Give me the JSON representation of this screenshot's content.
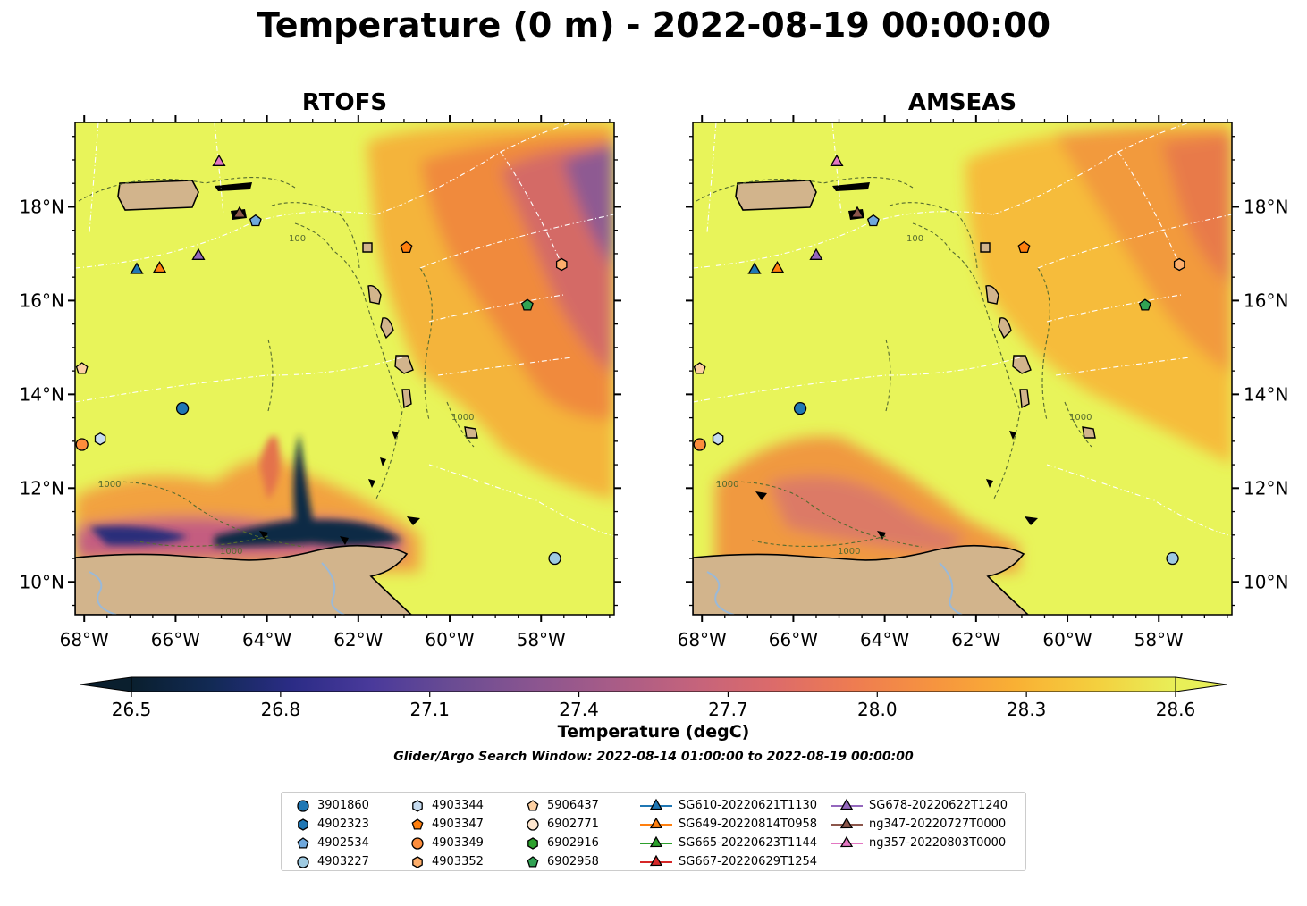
{
  "title": "Temperature (0 m) - 2022-08-19 00:00:00",
  "panels": [
    {
      "title": "RTOFS"
    },
    {
      "title": "AMSEAS"
    }
  ],
  "map": {
    "lon_range": [
      -68.2,
      -56.4
    ],
    "lat_range": [
      9.3,
      19.8
    ],
    "lon_ticks": [
      "68°W",
      "66°W",
      "64°W",
      "62°W",
      "60°W",
      "58°W"
    ],
    "lat_ticks": [
      "10°N",
      "12°N",
      "14°N",
      "16°N",
      "18°N"
    ],
    "contour_labels": [
      "100",
      "1000"
    ],
    "colors": {
      "land": "#d2b48c",
      "river": "#9ab9d8",
      "bathymetry": "#556b2f",
      "eez_lines": "#ffffff"
    }
  },
  "colorbar": {
    "label": "Temperature (degC)",
    "tick_labels": [
      "26.5",
      "26.8",
      "27.1",
      "27.4",
      "27.7",
      "28.0",
      "28.3",
      "28.6"
    ],
    "range": [
      26.5,
      28.6
    ],
    "colormap": "thermal",
    "stops": [
      "#0a1f2e",
      "#122a55",
      "#2b2c86",
      "#4a3a9b",
      "#6a4c93",
      "#8a5590",
      "#a85c87",
      "#c4637c",
      "#dc6b6a",
      "#ee7c51",
      "#f6943f",
      "#f9b034",
      "#f4cf3e",
      "#e8ef58"
    ]
  },
  "search_window": "Glider/Argo Search Window: 2022-08-14 01:00:00 to 2022-08-19 00:00:00",
  "legend": {
    "items": [
      {
        "label": "3901860",
        "marker": "circle",
        "color": "#1f77b4"
      },
      {
        "label": "4902323",
        "marker": "hexagon",
        "color": "#1f77b4"
      },
      {
        "label": "4902534",
        "marker": "pentagon",
        "color": "#6fa8dc"
      },
      {
        "label": "4903227",
        "marker": "circle",
        "color": "#9ecae1"
      },
      {
        "label": "4903344",
        "marker": "hexagon",
        "color": "#c6dbef"
      },
      {
        "label": "4903347",
        "marker": "pentagon",
        "color": "#ff7f0e"
      },
      {
        "label": "4903349",
        "marker": "circle",
        "color": "#fd8d3c"
      },
      {
        "label": "4903352",
        "marker": "hexagon",
        "color": "#fdae6b"
      },
      {
        "label": "5906437",
        "marker": "pentagon",
        "color": "#fdd0a2"
      },
      {
        "label": "6902771",
        "marker": "circle",
        "color": "#fee6ce"
      },
      {
        "label": "6902916",
        "marker": "hexagon",
        "color": "#2ca02c"
      },
      {
        "label": "6902958",
        "marker": "pentagon",
        "color": "#31a354"
      },
      {
        "label": "SG610-20220621T1130",
        "marker": "triangle",
        "color": "#1f77b4"
      },
      {
        "label": "SG649-20220814T0958",
        "marker": "triangle",
        "color": "#ff7f0e"
      },
      {
        "label": "SG665-20220623T1144",
        "marker": "triangle",
        "color": "#2ca02c"
      },
      {
        "label": "SG667-20220629T1254",
        "marker": "triangle",
        "color": "#d62728"
      },
      {
        "label": "SG678-20220622T1240",
        "marker": "triangle",
        "color": "#9467bd"
      },
      {
        "label": "ng347-20220727T0000",
        "marker": "triangle",
        "color": "#8c564b"
      },
      {
        "label": "ng357-20220803T0000",
        "marker": "triangle",
        "color": "#e377c2"
      }
    ]
  },
  "observations": [
    {
      "name": "3901860",
      "lon": -65.85,
      "lat": 13.7
    },
    {
      "name": "4903227",
      "lon": -57.7,
      "lat": 10.5
    },
    {
      "name": "4903349",
      "lon": -68.05,
      "lat": 12.93
    },
    {
      "name": "4903344",
      "lon": -67.65,
      "lat": 13.05
    },
    {
      "name": "5906437",
      "lon": -68.05,
      "lat": 14.55
    },
    {
      "name": "4903352",
      "lon": -57.55,
      "lat": 16.77
    },
    {
      "name": "6902958",
      "lon": -58.3,
      "lat": 15.9
    },
    {
      "name": "4903347",
      "lon": -60.95,
      "lat": 17.13
    },
    {
      "name": "4902534",
      "lon": -64.25,
      "lat": 17.7
    },
    {
      "name": "SG610-20220621T1130",
      "lon": -66.85,
      "lat": 16.65
    },
    {
      "name": "SG649-20220814T0958",
      "lon": -66.35,
      "lat": 16.68
    },
    {
      "name": "SG678-20220622T1240",
      "lon": -65.5,
      "lat": 16.95
    },
    {
      "name": "ng347-20220727T0000",
      "lon": -64.6,
      "lat": 17.85
    },
    {
      "name": "ng357-20220803T0000",
      "lon": -65.05,
      "lat": 18.95
    }
  ]
}
